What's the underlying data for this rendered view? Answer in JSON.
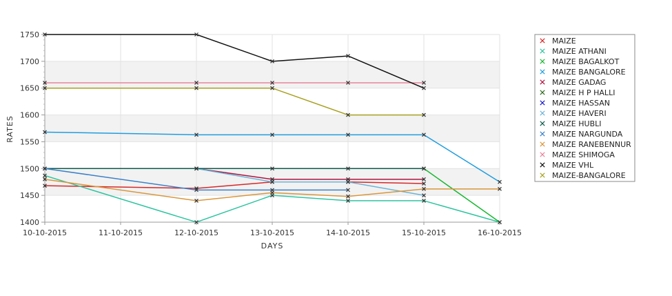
{
  "chart_data": {
    "type": "line",
    "title": "",
    "xlabel": "DAYS",
    "ylabel": "RATES",
    "x": [
      "10-10-2015",
      "11-10-2015",
      "12-10-2015",
      "13-10-2015",
      "14-10-2015",
      "15-10-2015",
      "16-10-2015"
    ],
    "ylim": [
      1400,
      1750
    ],
    "yticks": [
      1400,
      1450,
      1500,
      1550,
      1600,
      1650,
      1700,
      1750
    ],
    "grid": true,
    "legend_position": "right",
    "series": [
      {
        "name": "MAIZE",
        "color": "#d62728",
        "points": [
          [
            "10-10-2015",
            1468
          ],
          [
            "12-10-2015",
            1463
          ],
          [
            "13-10-2015",
            1475
          ],
          [
            "14-10-2015",
            1475
          ],
          [
            "15-10-2015",
            1472
          ]
        ]
      },
      {
        "name": "MAIZE ATHANI",
        "color": "#2ec4a0",
        "points": [
          [
            "10-10-2015",
            1487
          ],
          [
            "12-10-2015",
            1400
          ],
          [
            "13-10-2015",
            1450
          ],
          [
            "14-10-2015",
            1440
          ],
          [
            "15-10-2015",
            1440
          ],
          [
            "16-10-2015",
            1400
          ]
        ]
      },
      {
        "name": "MAIZE BAGALKOT",
        "color": "#17b830",
        "points": [
          [
            "15-10-2015",
            1500
          ],
          [
            "16-10-2015",
            1400
          ]
        ]
      },
      {
        "name": "MAIZE BANGALORE",
        "color": "#1f9de0",
        "points": [
          [
            "10-10-2015",
            1568
          ],
          [
            "12-10-2015",
            1563
          ],
          [
            "13-10-2015",
            1563
          ],
          [
            "14-10-2015",
            1563
          ],
          [
            "15-10-2015",
            1563
          ],
          [
            "16-10-2015",
            1475
          ]
        ]
      },
      {
        "name": "MAIZE GADAG",
        "color": "#b0123e",
        "points": [
          [
            "12-10-2015",
            1500
          ],
          [
            "13-10-2015",
            1480
          ],
          [
            "14-10-2015",
            1480
          ],
          [
            "15-10-2015",
            1480
          ]
        ]
      },
      {
        "name": "MAIZE H P HALLI",
        "color": "#2f6b1f",
        "points": []
      },
      {
        "name": "MAIZE HASSAN",
        "color": "#1a1acc",
        "points": []
      },
      {
        "name": "MAIZE HAVERI",
        "color": "#6ab4d8",
        "points": [
          [
            "12-10-2015",
            1500
          ],
          [
            "13-10-2015",
            1475
          ],
          [
            "14-10-2015",
            1475
          ],
          [
            "15-10-2015",
            1450
          ]
        ]
      },
      {
        "name": "MAIZE HUBLI",
        "color": "#0b5a4a",
        "points": [
          [
            "10-10-2015",
            1500
          ],
          [
            "12-10-2015",
            1500
          ],
          [
            "13-10-2015",
            1500
          ],
          [
            "14-10-2015",
            1500
          ],
          [
            "15-10-2015",
            1500
          ]
        ]
      },
      {
        "name": "MAIZE NARGUNDA",
        "color": "#3a80c8",
        "points": [
          [
            "10-10-2015",
            1500
          ],
          [
            "12-10-2015",
            1460
          ],
          [
            "13-10-2015",
            1460
          ],
          [
            "14-10-2015",
            1460
          ]
        ]
      },
      {
        "name": "MAIZE RANEBENNUR",
        "color": "#d9963a",
        "points": [
          [
            "10-10-2015",
            1480
          ],
          [
            "12-10-2015",
            1440
          ],
          [
            "13-10-2015",
            1455
          ],
          [
            "14-10-2015",
            1448
          ],
          [
            "15-10-2015",
            1462
          ],
          [
            "16-10-2015",
            1462
          ]
        ]
      },
      {
        "name": "MAIZE SHIMOGA",
        "color": "#e8839a",
        "points": [
          [
            "10-10-2015",
            1660
          ],
          [
            "12-10-2015",
            1660
          ],
          [
            "13-10-2015",
            1660
          ],
          [
            "14-10-2015",
            1660
          ],
          [
            "15-10-2015",
            1660
          ]
        ]
      },
      {
        "name": "MAIZE VHL",
        "color": "#111111",
        "points": [
          [
            "10-10-2015",
            1750
          ],
          [
            "12-10-2015",
            1750
          ],
          [
            "13-10-2015",
            1700
          ],
          [
            "14-10-2015",
            1710
          ],
          [
            "15-10-2015",
            1650
          ]
        ]
      },
      {
        "name": "MAIZE-BANGALORE",
        "color": "#a8a020",
        "points": [
          [
            "10-10-2015",
            1650
          ],
          [
            "12-10-2015",
            1650
          ],
          [
            "13-10-2015",
            1650
          ],
          [
            "14-10-2015",
            1600
          ],
          [
            "15-10-2015",
            1600
          ]
        ]
      }
    ]
  }
}
